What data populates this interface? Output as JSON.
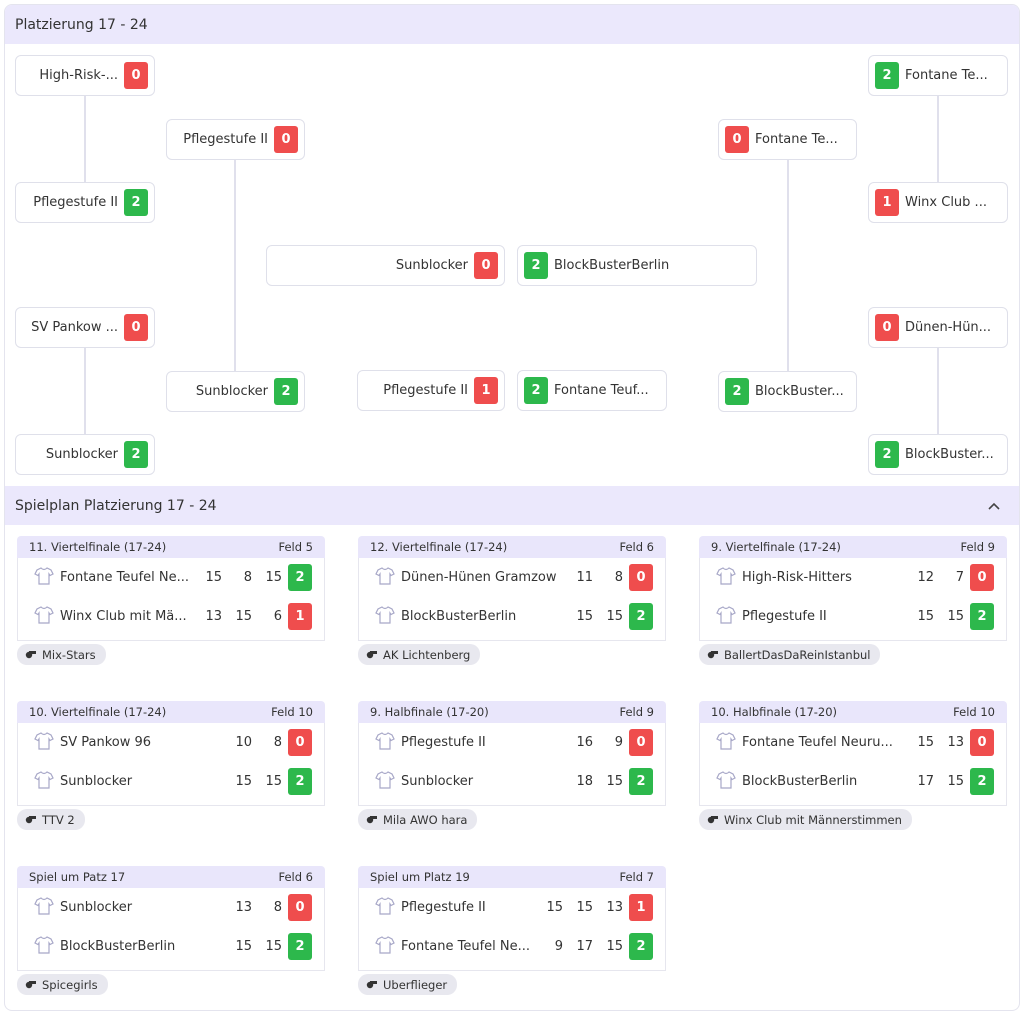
{
  "bracket": {
    "title": "Platzierung 17 - 24",
    "matches": [
      {
        "teams": [
          {
            "name": "High-Risk-...",
            "score": 0
          },
          {
            "name": "Pflegestufe II",
            "score": 2
          }
        ]
      },
      {
        "teams": [
          {
            "name": "SV Pankow ...",
            "score": 0
          },
          {
            "name": "Sunblocker",
            "score": 2
          }
        ]
      },
      {
        "teams": [
          {
            "name": "Pflegestufe II",
            "score": 0
          },
          {
            "name": "Sunblocker",
            "score": 2
          }
        ]
      },
      {
        "teams": [
          {
            "name": "Sunblocker",
            "score": 0
          },
          {
            "name": "BlockBusterBerlin",
            "score": 2
          }
        ]
      },
      {
        "teams": [
          {
            "name": "Pflegestufe II",
            "score": 1
          },
          {
            "name": "Fontane Teuf...",
            "score": 2
          }
        ]
      },
      {
        "teams": [
          {
            "name": "Fontane Te...",
            "score": 0
          },
          {
            "name": "BlockBuster...",
            "score": 2
          }
        ]
      },
      {
        "teams": [
          {
            "name": "Fontane Te...",
            "score": 2
          },
          {
            "name": "Winx Club ...",
            "score": 1
          }
        ]
      },
      {
        "teams": [
          {
            "name": "Dünen-Hün...",
            "score": 0
          },
          {
            "name": "BlockBuster...",
            "score": 2
          }
        ]
      }
    ]
  },
  "schedule": {
    "title": "Spielplan Platzierung 17 - 24",
    "games": [
      {
        "round": "11. Viertelfinale (17-24)",
        "field": "Feld 5",
        "teams": [
          {
            "name": "Fontane Teufel Ne...",
            "sets": [
              15,
              8,
              15
            ],
            "total": 2
          },
          {
            "name": "Winx Club mit Mä...",
            "sets": [
              13,
              15,
              6
            ],
            "total": 1
          }
        ],
        "referee": "Mix-Stars"
      },
      {
        "round": "12. Viertelfinale (17-24)",
        "field": "Feld 6",
        "teams": [
          {
            "name": "Dünen-Hünen Gramzow",
            "sets": [
              11,
              8
            ],
            "total": 0
          },
          {
            "name": "BlockBusterBerlin",
            "sets": [
              15,
              15
            ],
            "total": 2
          }
        ],
        "referee": "AK Lichtenberg"
      },
      {
        "round": "9. Viertelfinale (17-24)",
        "field": "Feld 9",
        "teams": [
          {
            "name": "High-Risk-Hitters",
            "sets": [
              12,
              7
            ],
            "total": 0
          },
          {
            "name": "Pflegestufe II",
            "sets": [
              15,
              15
            ],
            "total": 2
          }
        ],
        "referee": "BallertDasDaReinIstanbul"
      },
      {
        "round": "10. Viertelfinale (17-24)",
        "field": "Feld 10",
        "teams": [
          {
            "name": "SV Pankow 96",
            "sets": [
              10,
              8
            ],
            "total": 0
          },
          {
            "name": "Sunblocker",
            "sets": [
              15,
              15
            ],
            "total": 2
          }
        ],
        "referee": "TTV 2"
      },
      {
        "round": "9. Halbfinale (17-20)",
        "field": "Feld 9",
        "teams": [
          {
            "name": "Pflegestufe II",
            "sets": [
              16,
              9
            ],
            "total": 0
          },
          {
            "name": "Sunblocker",
            "sets": [
              18,
              15
            ],
            "total": 2
          }
        ],
        "referee": "Mila AWO hara"
      },
      {
        "round": "10. Halbfinale (17-20)",
        "field": "Feld 10",
        "teams": [
          {
            "name": "Fontane Teufel Neuru...",
            "sets": [
              15,
              13
            ],
            "total": 0
          },
          {
            "name": "BlockBusterBerlin",
            "sets": [
              17,
              15
            ],
            "total": 2
          }
        ],
        "referee": "Winx Club mit Männerstimmen"
      },
      {
        "round": "Spiel um Patz 17",
        "field": "Feld 6",
        "teams": [
          {
            "name": "Sunblocker",
            "sets": [
              13,
              8
            ],
            "total": 0
          },
          {
            "name": "BlockBusterBerlin",
            "sets": [
              15,
              15
            ],
            "total": 2
          }
        ],
        "referee": "Spicegirls"
      },
      {
        "round": "Spiel um Platz 19",
        "field": "Feld 7",
        "teams": [
          {
            "name": "Pflegestufe II",
            "sets": [
              15,
              15,
              13
            ],
            "total": 1
          },
          {
            "name": "Fontane Teufel Ne...",
            "sets": [
              9,
              17,
              15
            ],
            "total": 2
          }
        ],
        "referee": "Uberflieger"
      }
    ]
  }
}
